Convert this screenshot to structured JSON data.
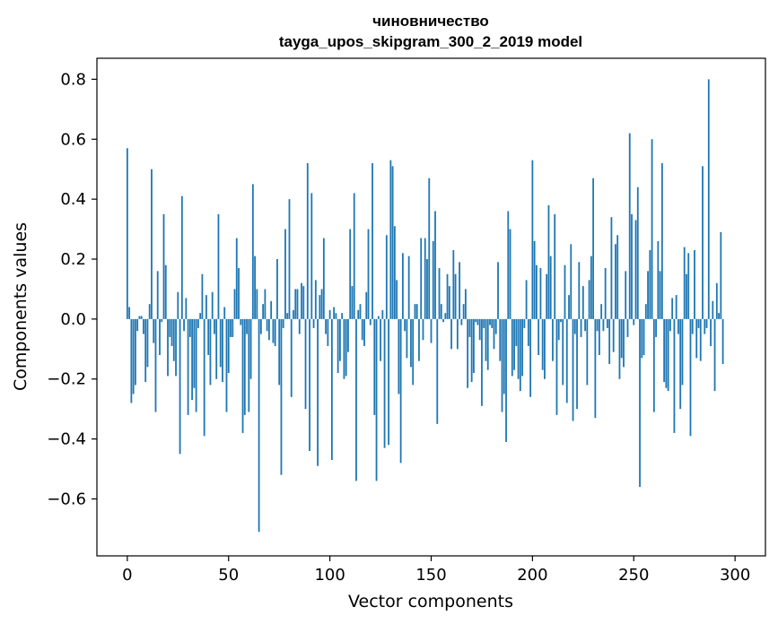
{
  "chart_data": {
    "type": "bar",
    "title": "чиновничество",
    "subtitle": "tayga_upos_skipgram_300_2_2019 model",
    "xlabel": "Vector components",
    "ylabel": "Components values",
    "xlim": [
      -15,
      315
    ],
    "ylim": [
      -0.79,
      0.87
    ],
    "xticks": [
      0,
      50,
      100,
      150,
      200,
      250,
      300
    ],
    "xtick_labels": [
      "0",
      "50",
      "100",
      "150",
      "200",
      "250",
      "300"
    ],
    "yticks": [
      -0.6,
      -0.4,
      -0.2,
      0.0,
      0.2,
      0.4,
      0.6,
      0.8
    ],
    "ytick_labels": [
      "−0.6",
      "−0.4",
      "−0.2",
      "0.0",
      "0.2",
      "0.4",
      "0.6",
      "0.8"
    ],
    "grid": false,
    "bar_color": "#1f77b4",
    "values": [
      0.57,
      0.04,
      -0.28,
      -0.25,
      -0.22,
      -0.04,
      0.01,
      0.01,
      -0.05,
      -0.21,
      -0.16,
      0.05,
      0.5,
      -0.08,
      -0.31,
      0.16,
      -0.12,
      -0.01,
      0.35,
      0.18,
      -0.19,
      -0.06,
      -0.09,
      -0.14,
      -0.19,
      0.09,
      -0.45,
      0.41,
      -0.04,
      0.07,
      -0.32,
      -0.06,
      -0.27,
      -0.23,
      -0.31,
      -0.03,
      0.02,
      0.15,
      -0.39,
      0.08,
      -0.12,
      -0.22,
      0.09,
      -0.05,
      -0.2,
      0.35,
      -0.16,
      -0.21,
      0.04,
      -0.31,
      -0.18,
      -0.06,
      -0.06,
      0.1,
      0.27,
      0.17,
      -0.02,
      -0.38,
      -0.32,
      -0.05,
      -0.31,
      -0.2,
      0.45,
      0.21,
      0.1,
      -0.71,
      -0.05,
      0.05,
      0.1,
      -0.04,
      -0.07,
      0.06,
      -0.08,
      -0.09,
      0.2,
      -0.22,
      -0.52,
      -0.03,
      0.3,
      0.02,
      0.4,
      -0.26,
      0.03,
      0.1,
      0.1,
      -0.05,
      0.12,
      0.11,
      -0.3,
      0.52,
      -0.44,
      0.42,
      -0.03,
      0.13,
      -0.49,
      0.08,
      0.1,
      0.27,
      -0.05,
      -0.09,
      0.03,
      -0.47,
      0.04,
      0.02,
      -0.18,
      -0.14,
      0.02,
      -0.2,
      -0.19,
      -0.11,
      0.3,
      0.11,
      0.42,
      -0.54,
      0.03,
      0.05,
      -0.07,
      -0.09,
      0.09,
      0.3,
      -0.02,
      0.52,
      -0.32,
      -0.54,
      0.01,
      -0.14,
      0.03,
      -0.43,
      0.28,
      -0.42,
      0.53,
      0.51,
      0.31,
      0.13,
      -0.25,
      -0.48,
      0.22,
      -0.04,
      -0.13,
      0.21,
      -0.16,
      -0.22,
      0.05,
      0.05,
      -0.14,
      0.27,
      -0.07,
      0.27,
      0.2,
      0.47,
      -0.08,
      0.26,
      0.36,
      -0.35,
      0.17,
      0.05,
      -0.01,
      0.02,
      0.15,
      0.11,
      -0.1,
      0.23,
      0.15,
      -0.1,
      0.19,
      -0.02,
      0.05,
      0.1,
      -0.23,
      -0.06,
      -0.21,
      -0.18,
      -0.01,
      -0.02,
      -0.07,
      -0.29,
      -0.03,
      -0.14,
      -0.17,
      -0.02,
      -0.03,
      -0.1,
      -0.05,
      0.19,
      -0.14,
      -0.31,
      -0.25,
      -0.41,
      0.36,
      0.3,
      -0.19,
      -0.17,
      -0.09,
      -0.2,
      -0.24,
      -0.19,
      -0.03,
      0.13,
      -0.09,
      -0.26,
      0.53,
      0.26,
      0.18,
      -0.12,
      0.17,
      -0.17,
      -0.2,
      0.15,
      0.38,
      0.21,
      -0.14,
      0.35,
      -0.32,
      -0.07,
      -0.01,
      -0.22,
      0.18,
      -0.28,
      0.08,
      0.25,
      -0.34,
      -0.05,
      -0.3,
      0.19,
      -0.06,
      0.11,
      -0.04,
      -0.22,
      0.13,
      0.21,
      0.47,
      -0.33,
      -0.04,
      -0.12,
      0.05,
      -0.04,
      0.17,
      -0.03,
      -0.15,
      0.34,
      -0.11,
      0.25,
      0.28,
      -0.2,
      -0.13,
      -0.16,
      0.16,
      -0.06,
      0.62,
      0.35,
      -0.02,
      0.33,
      0.44,
      -0.56,
      -0.13,
      -0.12,
      0.05,
      0.16,
      0.23,
      0.6,
      -0.31,
      -0.06,
      0.26,
      0.16,
      0.52,
      -0.21,
      -0.23,
      -0.24,
      -0.04,
      0.07,
      -0.38,
      0.08,
      -0.05,
      -0.3,
      -0.22,
      0.24,
      0.15,
      0.22,
      -0.39,
      -0.05,
      0.23,
      -0.13,
      -0.03,
      -0.14,
      0.51,
      -0.05,
      -0.03,
      0.8,
      -0.09,
      0.06,
      -0.24,
      0.12,
      0.02,
      0.29,
      -0.15
    ]
  }
}
